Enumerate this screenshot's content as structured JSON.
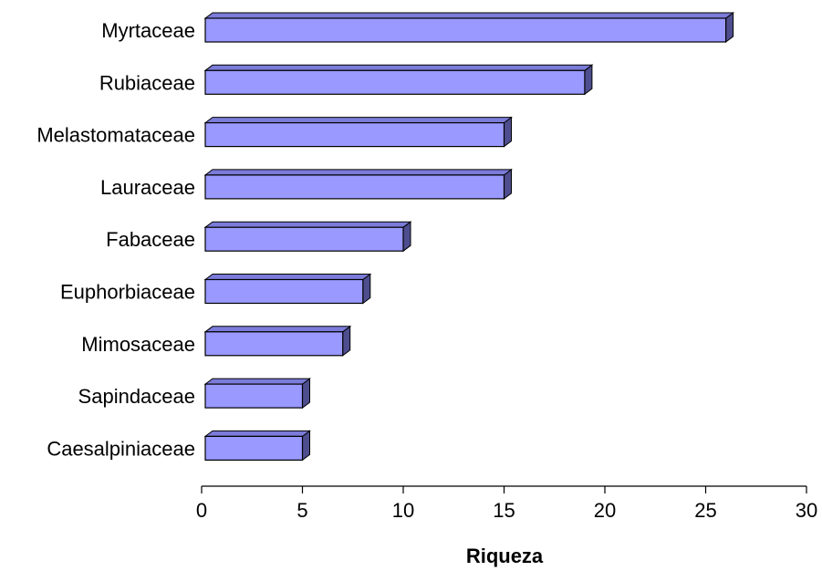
{
  "chart_data": {
    "type": "bar",
    "orientation": "horizontal",
    "style": "3d",
    "categories": [
      "Myrtaceae",
      "Rubiaceae",
      "Melastomataceae",
      "Lauraceae",
      "Fabaceae",
      "Euphorbiaceae",
      "Mimosaceae",
      "Sapindaceae",
      "Caesalpiniaceae"
    ],
    "values": [
      26,
      19,
      15,
      15,
      10,
      8,
      7,
      5,
      5
    ],
    "title": "",
    "xlabel": "Riqueza",
    "ylabel": "",
    "xlim": [
      0,
      30
    ],
    "xticks": [
      0,
      5,
      10,
      15,
      20,
      25,
      30
    ],
    "grid": false,
    "legend": "none",
    "colors": {
      "bar_front": "#9999ff",
      "bar_top": "#7b7bd9",
      "bar_side": "#4e4e8f",
      "outline": "#000000"
    }
  }
}
